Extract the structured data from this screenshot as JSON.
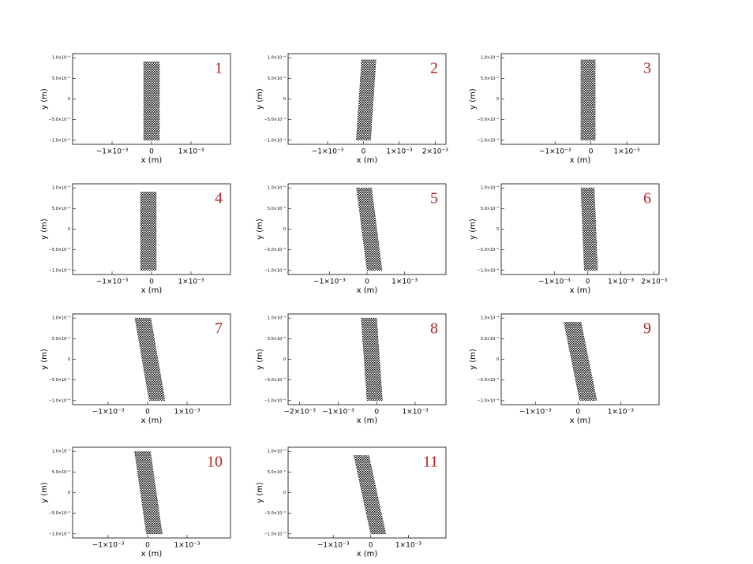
{
  "chart_data": [
    {
      "type": "area",
      "label": "1",
      "xlabel": "x (m)",
      "ylabel": "y (m)",
      "xlim": [
        -0.002,
        0.002
      ],
      "ylim": [
        -0.00011,
        0.00011
      ],
      "xticks": [
        {
          "value": -0.001,
          "label": "−1×10⁻³"
        },
        0,
        {
          "value": 0.001,
          "label": "1×10⁻³"
        }
      ],
      "yticks": [
        {
          "value": 0.0001,
          "label": "1.0×10⁻⁴"
        },
        {
          "value": 5e-05,
          "label": "5.0×10⁻⁵"
        },
        0,
        {
          "value": -5e-05,
          "label": "−5.0×10⁻⁵"
        },
        {
          "value": -0.0001,
          "label": "−1.0×10⁻⁴"
        }
      ],
      "x": [
        -0.0002,
        0.0002,
        0.0002,
        -0.0002
      ],
      "y": [
        9e-05,
        9e-05,
        -0.0001,
        -0.0001
      ],
      "color": "#000000"
    },
    {
      "type": "area",
      "label": "2",
      "xlabel": "x (m)",
      "ylabel": "y (m)",
      "xlim": [
        -0.0021,
        0.0023
      ],
      "ylim": [
        -0.00011,
        0.00011
      ],
      "xticks": [
        {
          "value": -0.001,
          "label": "−1×10⁻³"
        },
        0,
        {
          "value": 0.001,
          "label": "1×10⁻³"
        },
        {
          "value": 0.002,
          "label": "2×10⁻³"
        }
      ],
      "yticks": [
        {
          "value": 0.0001,
          "label": "1.0×10⁻⁴"
        },
        {
          "value": 5e-05,
          "label": "5.0×10⁻⁵"
        },
        0,
        {
          "value": -5e-05,
          "label": "−5.0×10⁻⁵"
        },
        {
          "value": -0.0001,
          "label": "−1.0×10⁻⁴"
        }
      ],
      "x": [
        -5e-05,
        0.00035,
        0.0002,
        -0.0002
      ],
      "y": [
        9.5e-05,
        9.5e-05,
        -0.0001,
        -0.0001
      ],
      "color": "#000000"
    },
    {
      "type": "area",
      "label": "3",
      "xlabel": "x (m)",
      "ylabel": "y (m)",
      "xlim": [
        -0.0025,
        0.0019
      ],
      "ylim": [
        -0.00011,
        0.00011
      ],
      "xticks": [
        {
          "value": -0.001,
          "label": "−1×10⁻³"
        },
        0,
        {
          "value": 0.001,
          "label": "1×10⁻³"
        }
      ],
      "yticks": [
        {
          "value": 0.0001,
          "label": "1.0×10⁻⁴"
        },
        {
          "value": 5e-05,
          "label": "5.0×10⁻⁵"
        },
        0,
        {
          "value": -5e-05,
          "label": "−5.0×10⁻⁵"
        },
        {
          "value": -0.0001,
          "label": "−1.0×10⁻⁴"
        }
      ],
      "x": [
        -0.00028,
        0.00012,
        0.00012,
        -0.00028
      ],
      "y": [
        9.5e-05,
        9.5e-05,
        -0.0001,
        -0.0001
      ],
      "color": "#000000"
    },
    {
      "type": "area",
      "label": "4",
      "xlabel": "x (m)",
      "ylabel": "y (m)",
      "xlim": [
        -0.002,
        0.002
      ],
      "ylim": [
        -0.00011,
        0.00011
      ],
      "xticks": [
        {
          "value": -0.001,
          "label": "−1×10⁻³"
        },
        0,
        {
          "value": 0.001,
          "label": "1×10⁻³"
        }
      ],
      "yticks": [
        {
          "value": 0.0001,
          "label": "1.0×10⁻⁴"
        },
        {
          "value": 5e-05,
          "label": "5.0×10⁻⁵"
        },
        0,
        {
          "value": -5e-05,
          "label": "−5.0×10⁻⁵"
        },
        {
          "value": -0.0001,
          "label": "−1.0×10⁻⁴"
        }
      ],
      "x": [
        -0.00028,
        0.00012,
        0.00012,
        -0.00028
      ],
      "y": [
        9e-05,
        9e-05,
        -0.0001,
        -0.0001
      ],
      "color": "#000000"
    },
    {
      "type": "area",
      "label": "5",
      "xlabel": "x (m)",
      "ylabel": "y (m)",
      "xlim": [
        -0.0021,
        0.0021
      ],
      "ylim": [
        -0.00011,
        0.00011
      ],
      "xticks": [
        {
          "value": -0.001,
          "label": "−1×10⁻³"
        },
        0,
        {
          "value": 0.001,
          "label": "1×10⁻³"
        }
      ],
      "yticks": [
        {
          "value": 0.0001,
          "label": "1.0×10⁻⁴"
        },
        {
          "value": 5e-05,
          "label": "5.0×10⁻⁵"
        },
        0,
        {
          "value": -5e-05,
          "label": "−5.0×10⁻⁵"
        },
        {
          "value": -0.0001,
          "label": "−1.0×10⁻⁴"
        }
      ],
      "x": [
        -0.00028,
        0.00012,
        0.0004,
        0.0
      ],
      "y": [
        0.0001,
        0.0001,
        -0.0001,
        -0.0001
      ],
      "color": "#000000"
    },
    {
      "type": "area",
      "label": "6",
      "xlabel": "x (m)",
      "ylabel": "y (m)",
      "xlim": [
        -0.0026,
        0.00215
      ],
      "ylim": [
        -0.00011,
        0.00011
      ],
      "xticks": [
        {
          "value": -0.001,
          "label": "−1×10⁻³"
        },
        0,
        {
          "value": 0.001,
          "label": "1×10⁻³"
        },
        {
          "value": 0.002,
          "label": "2×10⁻³"
        }
      ],
      "yticks": [
        {
          "value": 0.0001,
          "label": "1.0×10⁻⁴"
        },
        {
          "value": 5e-05,
          "label": "5.0×10⁻⁵"
        },
        0,
        {
          "value": -5e-05,
          "label": "−5.0×10⁻⁵"
        },
        {
          "value": -0.0001,
          "label": "−1.0×10⁻⁴"
        }
      ],
      "x": [
        -0.0002,
        0.0002,
        0.0003,
        -0.0001
      ],
      "y": [
        0.0001,
        0.0001,
        -0.0001,
        -0.0001
      ],
      "color": "#000000"
    },
    {
      "type": "area",
      "label": "7",
      "xlabel": "x (m)",
      "ylabel": "y (m)",
      "xlim": [
        -0.0019,
        0.0021
      ],
      "ylim": [
        -0.00011,
        0.00011
      ],
      "xticks": [
        {
          "value": -0.001,
          "label": "−1×10⁻³"
        },
        0,
        {
          "value": 0.001,
          "label": "1×10⁻³"
        }
      ],
      "yticks": [
        {
          "value": 0.0001,
          "label": "1.0×10⁻⁴"
        },
        {
          "value": 5e-05,
          "label": "5.0×10⁻⁵"
        },
        0,
        {
          "value": -5e-05,
          "label": "−5.0×10⁻⁵"
        },
        {
          "value": -0.0001,
          "label": "−1.0×10⁻⁴"
        }
      ],
      "x": [
        -0.00032,
        8e-05,
        0.00044,
        4e-05
      ],
      "y": [
        0.0001,
        0.0001,
        -0.0001,
        -0.0001
      ],
      "color": "#000000"
    },
    {
      "type": "area",
      "label": "8",
      "xlabel": "x (m)",
      "ylabel": "y (m)",
      "xlim": [
        -0.0023,
        0.0018
      ],
      "ylim": [
        -0.00011,
        0.00011
      ],
      "xticks": [
        {
          "value": -0.002,
          "label": "−2×10⁻³"
        },
        {
          "value": -0.001,
          "label": "−1×10⁻³"
        },
        0,
        {
          "value": 0.001,
          "label": "1×10⁻³"
        }
      ],
      "yticks": [
        {
          "value": 0.0001,
          "label": "1.0×10⁻⁴"
        },
        {
          "value": 5e-05,
          "label": "5.0×10⁻⁵"
        },
        0,
        {
          "value": -5e-05,
          "label": "−5.0×10⁻⁵"
        },
        {
          "value": -0.0001,
          "label": "−1.0×10⁻⁴"
        }
      ],
      "x": [
        -0.0004,
        0.0,
        0.00015,
        -0.00025
      ],
      "y": [
        0.0001,
        0.0001,
        -0.0001,
        -0.0001
      ],
      "color": "#000000"
    },
    {
      "type": "area",
      "label": "9",
      "xlabel": "x (m)",
      "ylabel": "y (m)",
      "xlim": [
        -0.0018,
        0.0019
      ],
      "ylim": [
        -0.00011,
        0.00011
      ],
      "xticks": [
        {
          "value": -0.001,
          "label": "−1×10⁻³"
        },
        0,
        {
          "value": 0.001,
          "label": "1×10⁻³"
        }
      ],
      "yticks": [
        {
          "value": 0.0001,
          "label": "1.0×10⁻⁴"
        },
        {
          "value": 5e-05,
          "label": "5.0×10⁻⁵"
        },
        0,
        {
          "value": -5e-05,
          "label": "−5.0×10⁻⁵"
        },
        {
          "value": -0.0001,
          "label": "−1.0×10⁻⁴"
        }
      ],
      "x": [
        -0.00033,
        7e-05,
        0.00044,
        4e-05
      ],
      "y": [
        9e-05,
        9e-05,
        -0.0001,
        -0.0001
      ],
      "color": "#000000"
    },
    {
      "type": "area",
      "label": "10",
      "xlabel": "x (m)",
      "ylabel": "y (m)",
      "xlim": [
        -0.0019,
        0.0021
      ],
      "ylim": [
        -0.00011,
        0.00011
      ],
      "xticks": [
        {
          "value": -0.001,
          "label": "−1×10⁻³"
        },
        0,
        {
          "value": 0.001,
          "label": "1×10⁻³"
        }
      ],
      "yticks": [
        {
          "value": 0.0001,
          "label": "1.0×10⁻⁴"
        },
        {
          "value": 5e-05,
          "label": "5.0×10⁻⁵"
        },
        0,
        {
          "value": -5e-05,
          "label": "−5.0×10⁻⁵"
        },
        {
          "value": -0.0001,
          "label": "−1.0×10⁻⁴"
        }
      ],
      "x": [
        -0.00033,
        7e-05,
        0.00037,
        -3e-05
      ],
      "y": [
        0.0001,
        0.0001,
        -0.0001,
        -0.0001
      ],
      "color": "#000000"
    },
    {
      "type": "area",
      "label": "11",
      "xlabel": "x (m)",
      "ylabel": "y (m)",
      "xlim": [
        -0.0022,
        0.002
      ],
      "ylim": [
        -0.00011,
        0.00011
      ],
      "xticks": [
        {
          "value": -0.001,
          "label": "−1×10⁻³"
        },
        0,
        {
          "value": 0.001,
          "label": "1×10⁻³"
        }
      ],
      "yticks": [
        {
          "value": 0.0001,
          "label": "1.0×10⁻⁴"
        },
        {
          "value": 5e-05,
          "label": "5.0×10⁻⁵"
        },
        0,
        {
          "value": -5e-05,
          "label": "−5.0×10⁻⁵"
        },
        {
          "value": -0.0001,
          "label": "−1.0×10⁻⁴"
        }
      ],
      "x": [
        -0.00045,
        -5e-05,
        0.0004,
        0.0
      ],
      "y": [
        9e-05,
        9e-05,
        -0.0001,
        -0.0001
      ],
      "color": "#000000"
    }
  ]
}
